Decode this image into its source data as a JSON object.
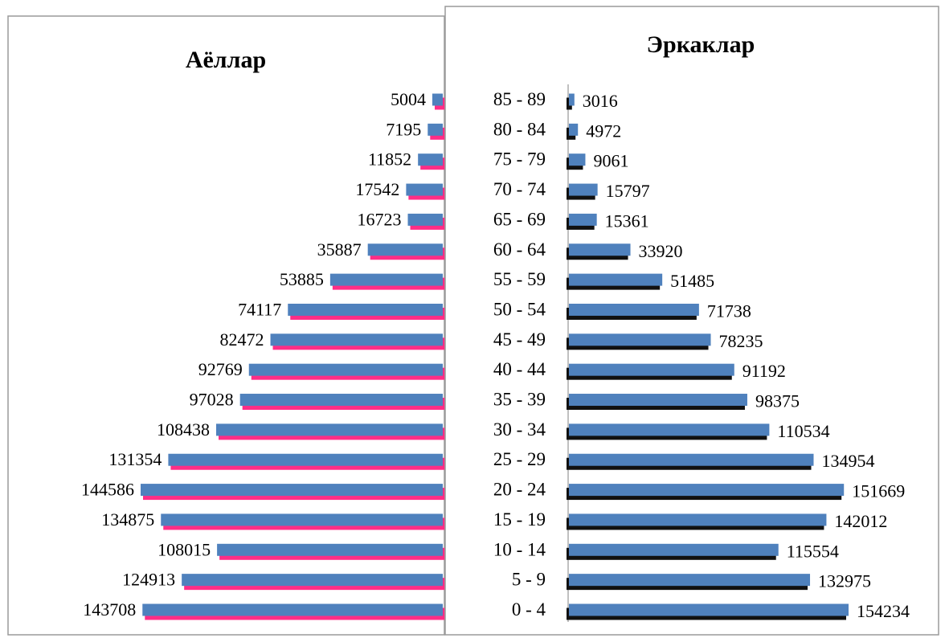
{
  "colors": {
    "bar": "#4f81bd",
    "female_shadow": "#ff2d86",
    "male_shadow": "#111111",
    "frame": "#9a9a9a"
  },
  "chart_data": {
    "type": "bar",
    "orientation": "horizontal",
    "layout": "population-pyramid",
    "categories": [
      "0 - 4",
      "5 - 9",
      "10 - 14",
      "15 - 19",
      "20 - 24",
      "25 - 29",
      "30 - 34",
      "35 - 39",
      "40 - 44",
      "45 - 49",
      "50 - 54",
      "55 - 59",
      "60 - 64",
      "65 - 69",
      "70 - 74",
      "75 - 79",
      "80 - 84",
      "85 - 89"
    ],
    "series": [
      {
        "name": "Аёллар",
        "values": [
          143708,
          124913,
          108015,
          134875,
          144586,
          131354,
          108438,
          97028,
          92769,
          82472,
          74117,
          53885,
          35887,
          16723,
          17542,
          11852,
          7195,
          5004
        ]
      },
      {
        "name": "Эркаклар",
        "values": [
          154234,
          132975,
          115554,
          142012,
          151669,
          134954,
          110534,
          98375,
          91192,
          78235,
          71738,
          51485,
          33920,
          15361,
          15797,
          9061,
          4972,
          3016
        ]
      }
    ],
    "data_labels": true,
    "grid": false,
    "legend": "none"
  }
}
